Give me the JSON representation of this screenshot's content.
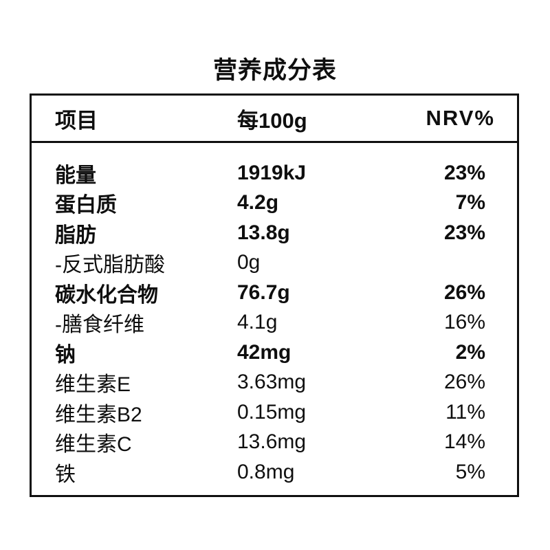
{
  "title": "营养成分表",
  "table": {
    "header": {
      "item": "项目",
      "per_100g": "每100g",
      "nrv": "NRV%"
    },
    "rows": [
      {
        "label": "能量",
        "value": "1919kJ",
        "nrv": "23%",
        "emphasis": true
      },
      {
        "label": "蛋白质",
        "value": "4.2g",
        "nrv": "7%",
        "emphasis": true
      },
      {
        "label": "脂肪",
        "value": "13.8g",
        "nrv": "23%",
        "emphasis": true
      },
      {
        "label": "-反式脂肪酸",
        "value": "0g",
        "nrv": "",
        "emphasis": false
      },
      {
        "label": "碳水化合物",
        "value": "76.7g",
        "nrv": "26%",
        "emphasis": true
      },
      {
        "label": "-膳食纤维",
        "value": "4.1g",
        "nrv": "16%",
        "emphasis": false
      },
      {
        "label": "钠",
        "value": "42mg",
        "nrv": "2%",
        "emphasis": true
      },
      {
        "label": "维生素E",
        "value": "3.63mg",
        "nrv": "26%",
        "emphasis": false
      },
      {
        "label": "维生素B2",
        "value": "0.15mg",
        "nrv": "11%",
        "emphasis": false
      },
      {
        "label": "维生素C",
        "value": "13.6mg",
        "nrv": "14%",
        "emphasis": false
      },
      {
        "label": "铁",
        "value": "0.8mg",
        "nrv": "5%",
        "emphasis": false
      }
    ]
  },
  "colors": {
    "text": "#0f0f0f",
    "border": "#0f0f0f",
    "background": "#ffffff"
  }
}
